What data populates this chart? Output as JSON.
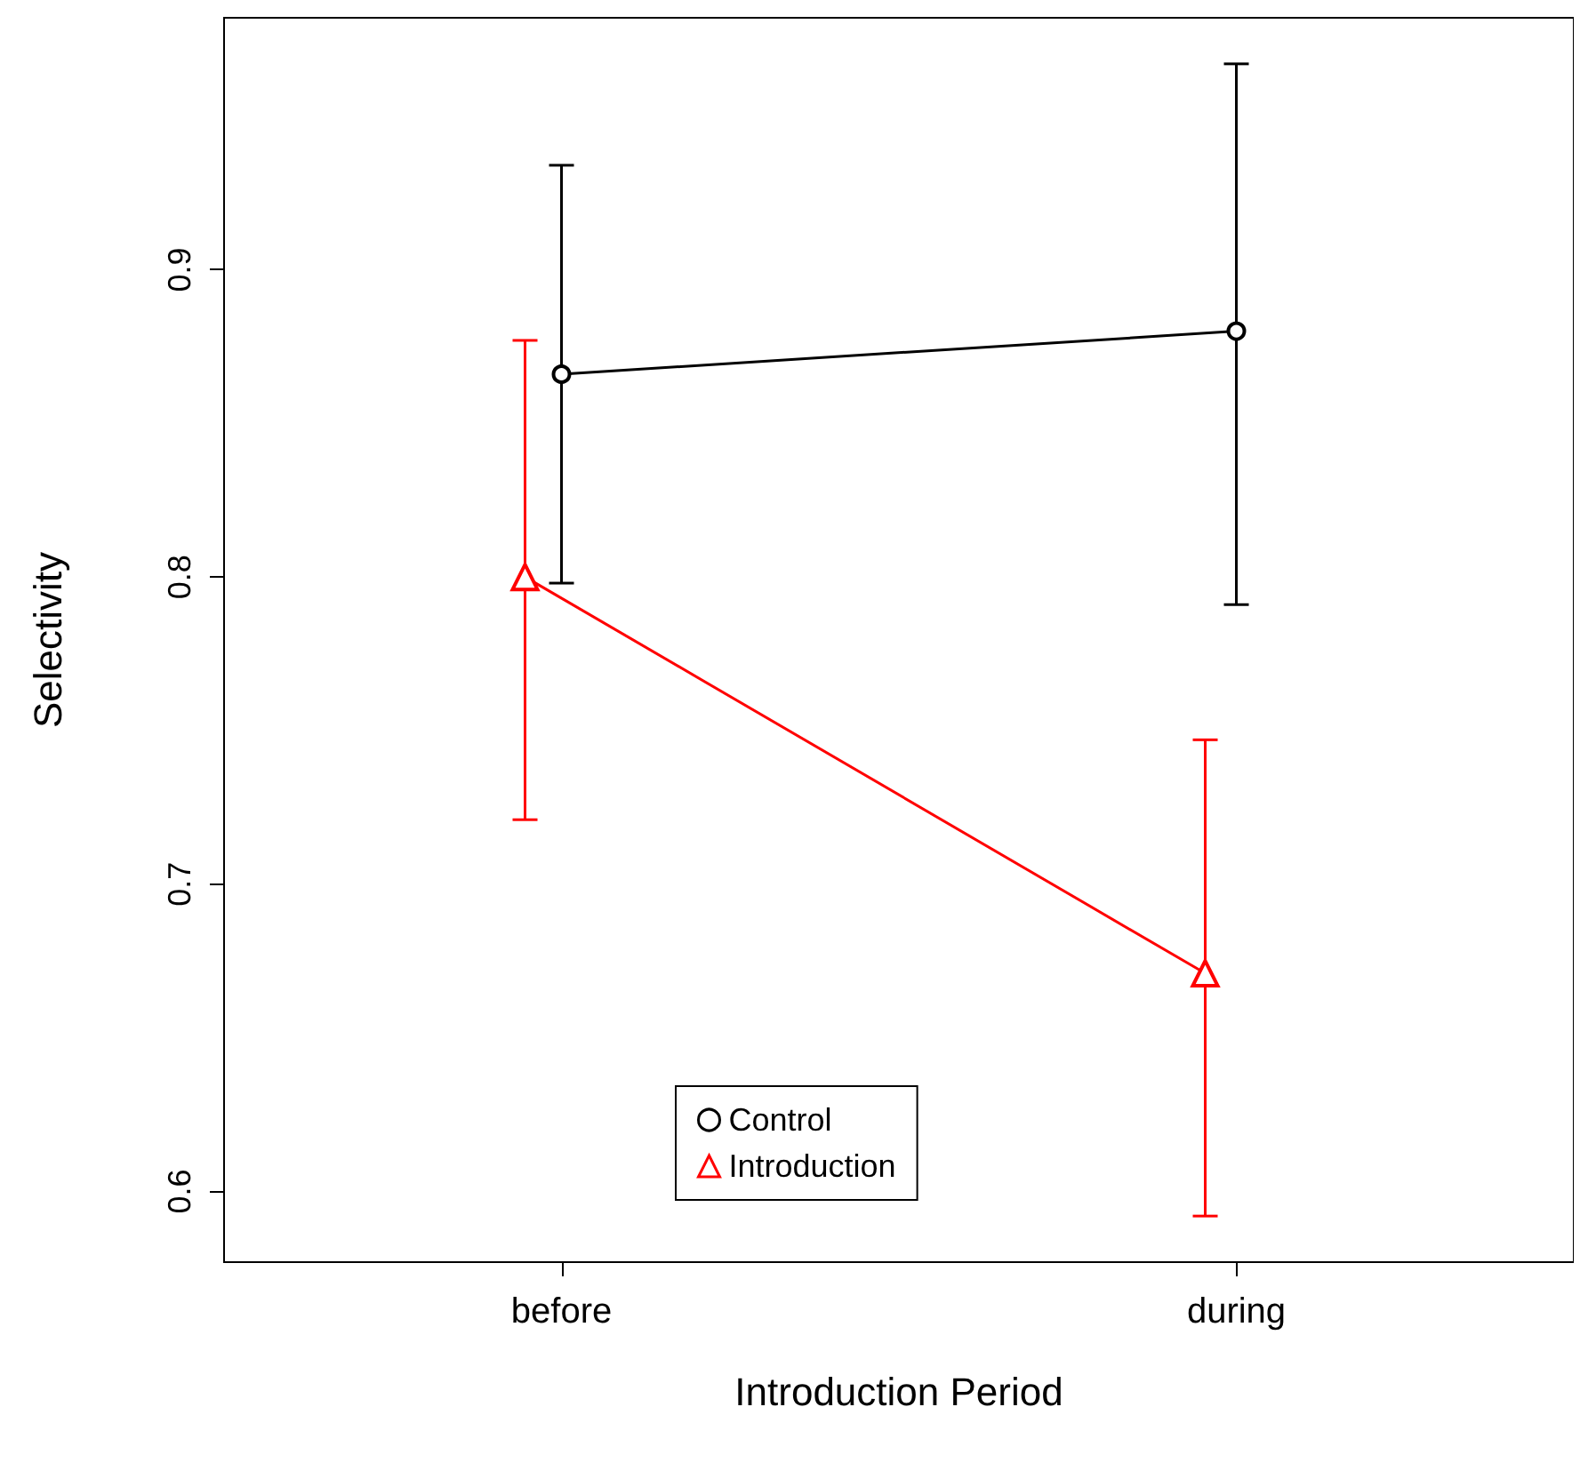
{
  "chart_data": {
    "type": "line",
    "xlabel": "Introduction Period",
    "ylabel": "Selectivity",
    "categories": [
      "before",
      "during"
    ],
    "series": [
      {
        "name": "Control",
        "color": "#000000",
        "marker": "circle",
        "values": [
          0.866,
          0.88
        ],
        "errors": [
          [
            0.798,
            0.934
          ],
          [
            0.791,
            0.967
          ]
        ]
      },
      {
        "name": "Introduction",
        "color": "#ff0000",
        "marker": "triangle",
        "values": [
          0.8,
          0.671
        ],
        "errors": [
          [
            0.721,
            0.877
          ],
          [
            0.592,
            0.747
          ]
        ]
      }
    ],
    "ylim": [
      0.577,
      0.982
    ],
    "yticks": [
      0.6,
      0.7,
      0.8,
      0.9
    ],
    "grid": false,
    "legend": "bottom"
  }
}
